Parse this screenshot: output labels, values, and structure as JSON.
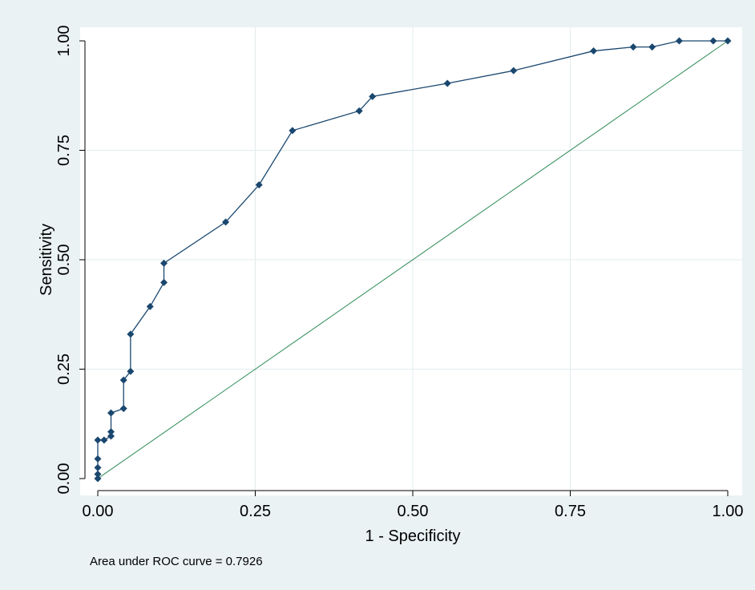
{
  "chart_data": {
    "type": "line",
    "xlabel": "1 - Specificity",
    "ylabel": "Sensitivity",
    "xlim": [
      0,
      1
    ],
    "ylim": [
      0,
      1
    ],
    "x_ticks": [
      "0.00",
      "0.25",
      "0.50",
      "0.75",
      "1.00"
    ],
    "y_ticks": [
      "0.00",
      "0.25",
      "0.50",
      "0.75",
      "1.00"
    ],
    "grid": true,
    "note": "Area under ROC curve = 0.7926",
    "colors": {
      "background": "#eaf2f3",
      "plot_area": "#ffffff",
      "roc_line": "#1a476f",
      "reference_line": "#2e8b57",
      "grid": "#e3ecee"
    },
    "series": [
      {
        "points": [
          [
            0.0,
            0.0
          ],
          [
            0.0,
            0.01
          ],
          [
            0.0,
            0.025
          ],
          [
            0.0,
            0.045
          ],
          [
            0.0,
            0.088
          ],
          [
            0.01,
            0.088
          ],
          [
            0.021,
            0.097
          ],
          [
            0.021,
            0.107
          ],
          [
            0.021,
            0.15
          ],
          [
            0.041,
            0.16
          ],
          [
            0.041,
            0.225
          ],
          [
            0.052,
            0.245
          ],
          [
            0.052,
            0.33
          ],
          [
            0.083,
            0.393
          ],
          [
            0.105,
            0.448
          ],
          [
            0.105,
            0.492
          ],
          [
            0.203,
            0.586
          ],
          [
            0.256,
            0.671
          ],
          [
            0.309,
            0.795
          ],
          [
            0.415,
            0.84
          ],
          [
            0.436,
            0.873
          ],
          [
            0.555,
            0.903
          ],
          [
            0.66,
            0.932
          ],
          [
            0.787,
            0.977
          ],
          [
            0.85,
            0.986
          ],
          [
            0.88,
            0.986
          ],
          [
            0.923,
            1.0
          ],
          [
            0.977,
            1.0
          ],
          [
            1.0,
            1.0
          ]
        ]
      },
      {
        "type": "reference",
        "points": [
          [
            0,
            0
          ],
          [
            1,
            1
          ]
        ]
      }
    ]
  }
}
